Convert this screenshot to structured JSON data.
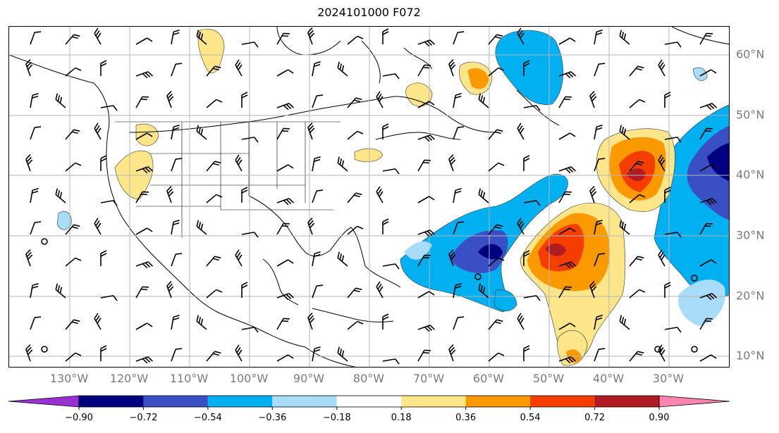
{
  "title": "2024101000 F072",
  "map": {
    "longitude_labels": [
      "130°W",
      "120°W",
      "110°W",
      "100°W",
      "90°W",
      "80°W",
      "70°W",
      "60°W",
      "50°W",
      "40°W",
      "30°W"
    ],
    "latitude_labels": [
      "60°N",
      "50°N",
      "40°N",
      "30°N",
      "20°N",
      "10°N"
    ],
    "gridlines": true,
    "features": [
      "coastlines",
      "country-borders",
      "us-state-borders",
      "wind-barbs",
      "filled-contours"
    ]
  },
  "colorbar": {
    "ticks": [
      "−0.90",
      "−0.72",
      "−0.54",
      "−0.36",
      "−0.18",
      "0.18",
      "0.36",
      "0.54",
      "0.72",
      "0.90"
    ],
    "colors": [
      "#9b30d0",
      "#000080",
      "#3a4fc4",
      "#00b0f0",
      "#a8dcf8",
      "#ffffff",
      "#fde68a",
      "#fb9a00",
      "#f53d00",
      "#b01c22",
      "#ff85b0"
    ]
  }
}
